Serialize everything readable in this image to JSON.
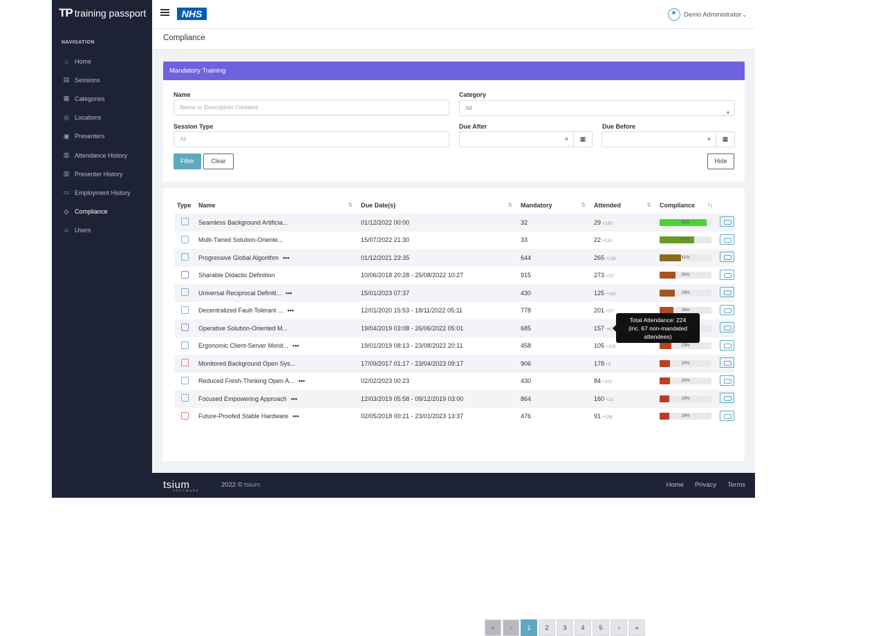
{
  "brand": {
    "mark": "TP",
    "name": "training passport"
  },
  "sidebar": {
    "heading": "NAVIGATION",
    "items": [
      {
        "label": "Home",
        "icon": "home-icon",
        "glyph": "⌂"
      },
      {
        "label": "Sessions",
        "icon": "calendar-icon",
        "glyph": "▤"
      },
      {
        "label": "Categories",
        "icon": "list-icon",
        "glyph": "▦"
      },
      {
        "label": "Locations",
        "icon": "pin-icon",
        "glyph": "◎"
      },
      {
        "label": "Presenters",
        "icon": "presenter-icon",
        "glyph": "▣"
      },
      {
        "label": "Attendance History",
        "icon": "history-icon",
        "glyph": "▥"
      },
      {
        "label": "Presenter History",
        "icon": "history-icon",
        "glyph": "▥"
      },
      {
        "label": "Employment History",
        "icon": "briefcase-icon",
        "glyph": "▭"
      },
      {
        "label": "Compliance",
        "icon": "compliance-icon",
        "glyph": "◇",
        "active": true
      },
      {
        "label": "Users",
        "icon": "users-icon",
        "glyph": "☺"
      }
    ]
  },
  "topbar": {
    "org": "NHS",
    "user": "Demo Administrator",
    "caret": "⌄"
  },
  "page": {
    "title": "Compliance"
  },
  "filter": {
    "header": "Mandatory Training",
    "name_label": "Name",
    "name_placeholder": "Name or Description Contains...",
    "category_label": "Category",
    "category_value": "All",
    "session_type_label": "Session Type",
    "session_type_placeholder": "All",
    "due_after_label": "Due After",
    "due_before_label": "Due Before",
    "clear_glyph": "×",
    "calendar_glyph": "▦",
    "filter_button": "Filter",
    "clear_button": "Clear",
    "hide_button": "Hide"
  },
  "table": {
    "headers": {
      "type": "Type",
      "name": "Name",
      "due": "Due Date(s)",
      "mandatory": "Mandatory",
      "attended": "Attended",
      "compliance": "Compliance"
    },
    "sort_glyph": "⇅",
    "sort_active_glyph": "↑↓",
    "more_glyph": "•••",
    "rows": [
      {
        "name": "Seamless Background Artificia...",
        "more": false,
        "due": "01/12/2022 00:00",
        "mandatory": "32",
        "attended": "29",
        "extra": "+185",
        "pct": "91%",
        "value": 91,
        "color": "#4cd137",
        "icon": "blue"
      },
      {
        "name": "Multi-Tiered Solution-Oriente...",
        "more": false,
        "due": "15/07/2022 21:30",
        "mandatory": "33",
        "attended": "22",
        "extra": "+133",
        "pct": "67%",
        "value": 67,
        "color": "#6a9a23",
        "icon": "blue"
      },
      {
        "name": "Progressive Global Algorithm",
        "more": true,
        "due": "01/12/2021 23:35",
        "mandatory": "644",
        "attended": "265",
        "extra": "+138",
        "pct": "41%",
        "value": 41,
        "color": "#8b6b1f",
        "icon": "blue"
      },
      {
        "name": "Sharable Didactic Definition",
        "more": false,
        "due": "10/06/2018 20:28 - 25/08/2022 10:27",
        "mandatory": "915",
        "attended": "273",
        "extra": "+23",
        "pct": "30%",
        "value": 30,
        "color": "#a8521f",
        "icon": "purple"
      },
      {
        "name": "Universal Reciprocal Definiti...",
        "more": true,
        "due": "15/01/2023 07:37",
        "mandatory": "430",
        "attended": "125",
        "extra": "+163",
        "pct": "29%",
        "value": 29,
        "color": "#a8521f",
        "icon": "blue"
      },
      {
        "name": "Decentralized Fault-Tolerant ...",
        "more": true,
        "due": "12/01/2020 15:53 - 18/11/2022 05:11",
        "mandatory": "778",
        "attended": "201",
        "extra": "+57",
        "pct": "26%",
        "value": 26,
        "color": "#b44a1f",
        "icon": "blue"
      },
      {
        "name": "Operative Solution-Oriented M...",
        "more": false,
        "due": "19/04/2019 03:08 - 26/06/2022 05:01",
        "mandatory": "685",
        "attended": "157",
        "extra": "+67",
        "pct": "23%",
        "value": 23,
        "color": "#b84420",
        "icon": "purple"
      },
      {
        "name": "Ergonomic Client-Server Monit...",
        "more": true,
        "due": "19/01/2019 08:13 - 23/08/2022 20:11",
        "mandatory": "458",
        "attended": "105",
        "extra": "+118",
        "pct": "23%",
        "value": 23,
        "color": "#b84420",
        "icon": "blue"
      },
      {
        "name": "Monitored Background Open Sys...",
        "more": false,
        "due": "17/09/2017 01:17 - 23/04/2023 09:17",
        "mandatory": "906",
        "attended": "178",
        "extra": "+8",
        "pct": "20%",
        "value": 20,
        "color": "#bc3f21",
        "icon": "red"
      },
      {
        "name": "Reduced Fresh-Thinking Open A...",
        "more": true,
        "due": "02/02/2023 00:23",
        "mandatory": "430",
        "attended": "84",
        "extra": "+101",
        "pct": "20%",
        "value": 20,
        "color": "#bc3f21",
        "icon": "blue"
      },
      {
        "name": "Focused Empowering Approach",
        "more": true,
        "due": "12/03/2019 05:58 - 09/12/2019 03:00",
        "mandatory": "864",
        "attended": "160",
        "extra": "+23",
        "pct": "19%",
        "value": 19,
        "color": "#bf3a22",
        "icon": "blue"
      },
      {
        "name": "Future-Proofed Stable Hardware",
        "more": true,
        "due": "02/05/2018 00:21 - 23/01/2023 13:37",
        "mandatory": "476",
        "attended": "91",
        "extra": "+128",
        "pct": "19%",
        "value": 19,
        "color": "#bf3a22",
        "icon": "red"
      }
    ]
  },
  "tooltip": {
    "line1": "Total Attendance: 224",
    "line2": "(inc. 67 non-mandated",
    "line3": "attendees)"
  },
  "pagination": {
    "first": "«",
    "prev": "‹",
    "pages": [
      "1",
      "2",
      "3",
      "4",
      "5"
    ],
    "next": "›",
    "last": "»",
    "current": "1"
  },
  "footer": {
    "logo": "tsium",
    "logo_sub": "SOFTWARE",
    "year": "2022 ©",
    "company": "tsium",
    "links": [
      "Home",
      "Privacy",
      "Terms"
    ]
  }
}
